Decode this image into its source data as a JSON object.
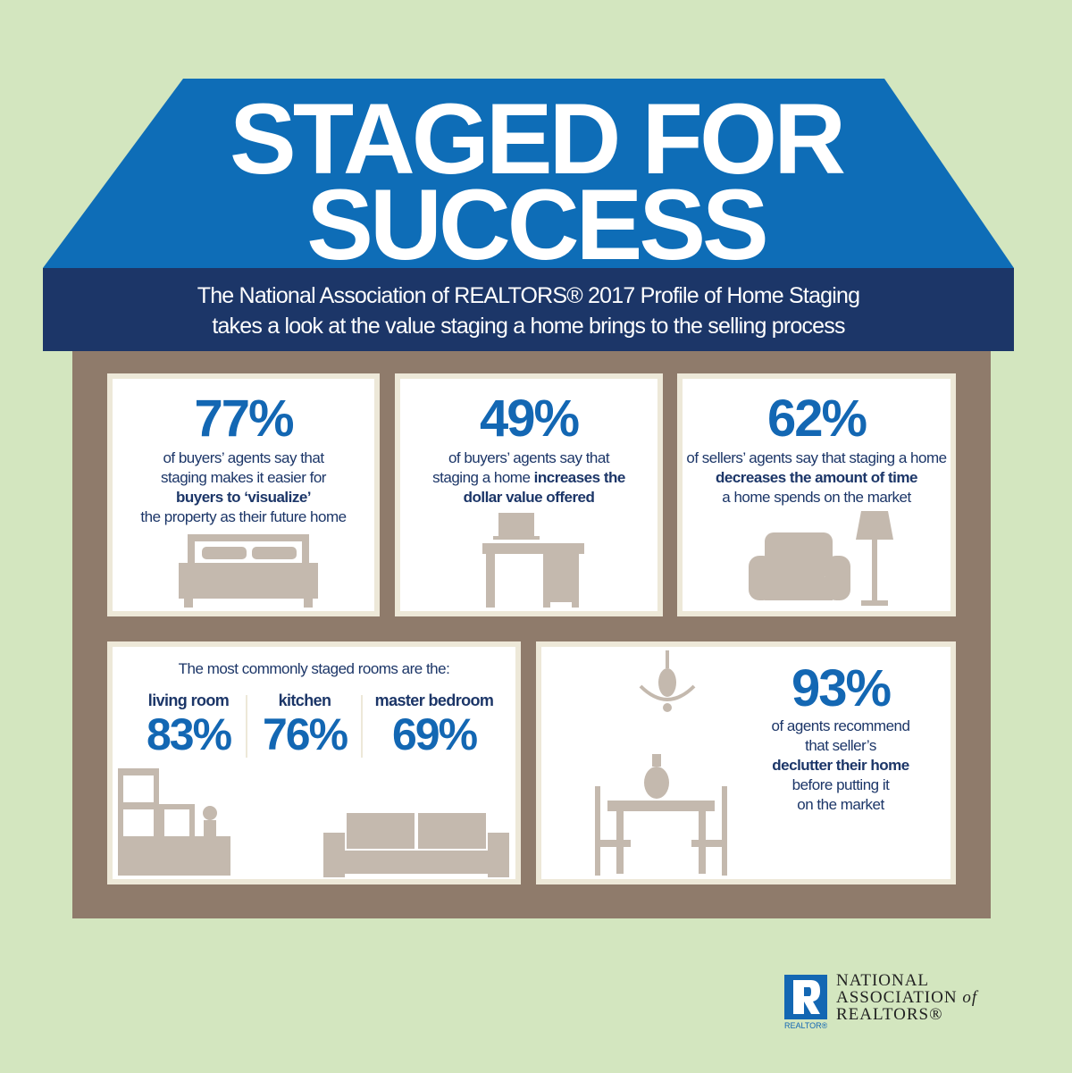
{
  "header": {
    "title_line1": "STAGED FOR",
    "title_line2": "SUCCESS",
    "subtitle_line1": "The National Association of REALTORS® 2017 Profile of Home Staging",
    "subtitle_line2": "takes a look at the value staging a home brings to the selling process"
  },
  "stats": [
    {
      "value": "77%",
      "l1": "of buyers’ agents say that",
      "l2": "staging makes it easier for",
      "l3": "buyers to ‘visualize’",
      "l4": "the property as their future home",
      "icon": "bed-icon"
    },
    {
      "value": "49%",
      "l1": "of buyers’ agents say that",
      "l2a": "staging a home ",
      "l2b": "increases the",
      "l3": "dollar value offered",
      "icon": "desk-icon"
    },
    {
      "value": "62%",
      "l1": "of sellers’ agents say that staging a home",
      "l2": "decreases the amount of time",
      "l3": "a home spends on the market",
      "icon": "armchair-lamp-icon"
    }
  ],
  "rooms": {
    "heading": "The most commonly staged rooms are the:",
    "items": [
      {
        "label": "living room",
        "value": "83%"
      },
      {
        "label": "kitchen",
        "value": "76%"
      },
      {
        "label": "master bedroom",
        "value": "69%"
      }
    ]
  },
  "declutter": {
    "value": "93%",
    "l1": "of agents recommend",
    "l2": "that seller’s",
    "l3": "declutter their home",
    "l4": "before putting it",
    "l5": "on the market"
  },
  "logo": {
    "line1": "NATIONAL",
    "line2": "ASSOCIATION",
    "line2b": "of",
    "line3": "REALTORS®",
    "mark": "REALTOR®"
  },
  "colors": {
    "background": "#d3e6bf",
    "roof": "#0e6db7",
    "band": "#1c3668",
    "house": "#8f7b6b",
    "accent": "#1367b3",
    "furniture": "#c4b9ae"
  }
}
